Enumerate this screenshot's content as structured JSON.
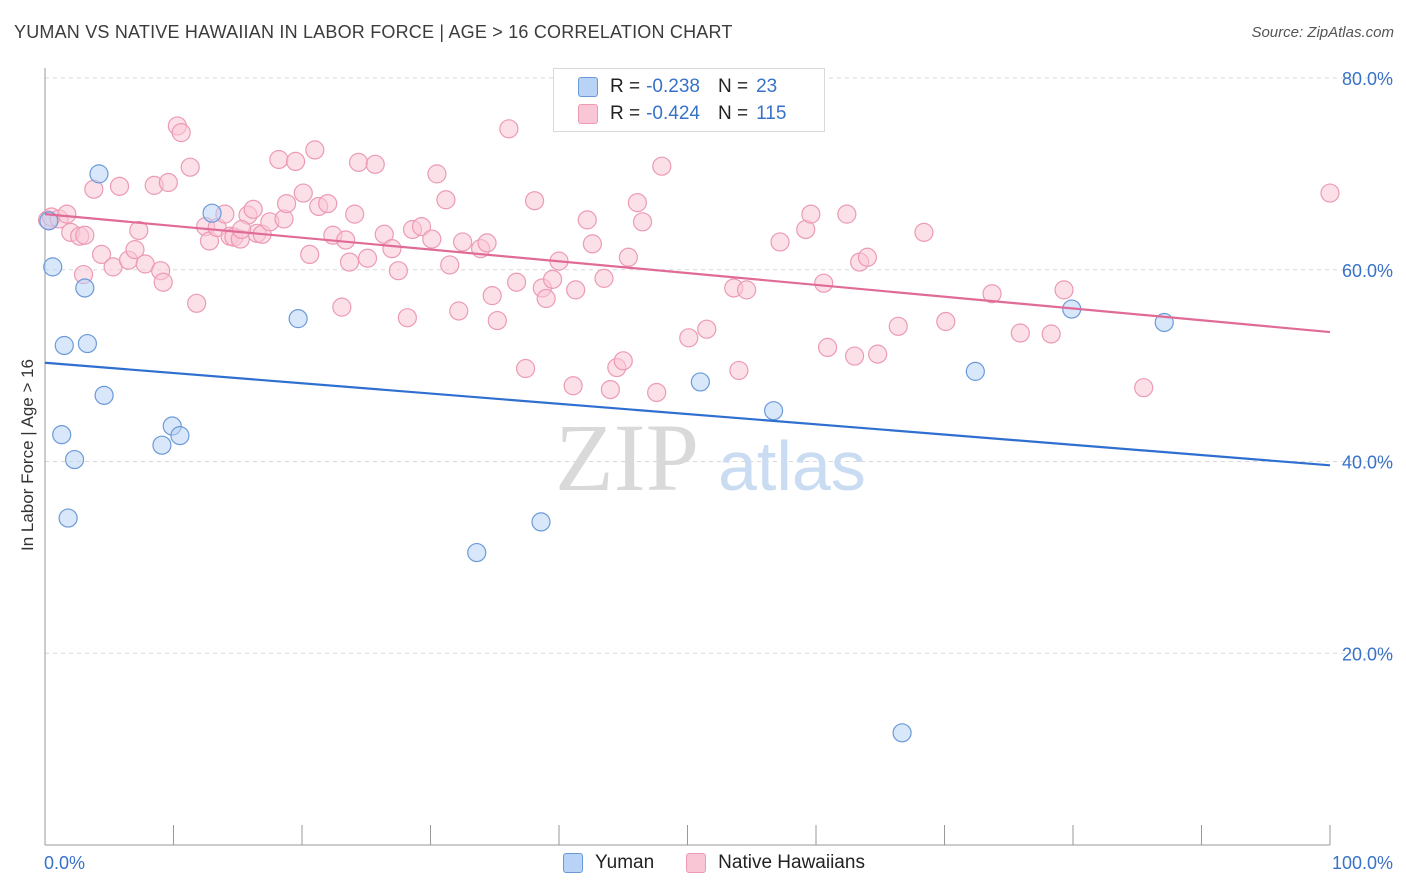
{
  "header": {
    "title": "YUMAN VS NATIVE HAWAIIAN IN LABOR FORCE | AGE > 16 CORRELATION CHART",
    "source": "Source: ZipAtlas.com"
  },
  "legend": {
    "yuman": {
      "r_label": "R =",
      "r_value": "-0.238",
      "n_label": "N =",
      "n_value": "23"
    },
    "hawaiian": {
      "r_label": "R =",
      "r_value": "-0.424",
      "n_label": "N =",
      "n_value": "115"
    }
  },
  "bottom_legend": {
    "yuman": "Yuman",
    "hawaiian": "Native Hawaiians"
  },
  "watermark": {
    "zip": "ZIP",
    "atlas": "atlas"
  },
  "colors": {
    "yuman_fill": "#b8d3f5",
    "yuman_stroke": "#6b9ad8",
    "yuman_line": "#2f6fd0",
    "hawaiian_fill": "#f9c6d6",
    "hawaiian_stroke": "#ec9ab5",
    "hawaiian_line": "#e06b96",
    "axis_text": "#3872c8",
    "grid": "#d8d8d8"
  },
  "chart_data": {
    "type": "scatter",
    "title": "YUMAN VS NATIVE HAWAIIAN IN LABOR FORCE | AGE > 16 CORRELATION CHART",
    "xlabel": "",
    "ylabel": "In Labor Force | Age > 16",
    "xlim": [
      0,
      100
    ],
    "ylim": [
      0,
      80
    ],
    "x_tick_labels": [
      "0.0%",
      "100.0%"
    ],
    "y_ticks": [
      20,
      40,
      60,
      80
    ],
    "y_tick_labels": [
      "20.0%",
      "40.0%",
      "60.0%",
      "80.0%"
    ],
    "grid": true,
    "legend_position": "top-center",
    "series": [
      {
        "name": "Yuman",
        "r": -0.238,
        "n": 23,
        "trend": {
          "x": [
            0,
            100
          ],
          "y": [
            50.3,
            39.6
          ]
        },
        "points": [
          [
            0.3,
            65.1
          ],
          [
            0.6,
            60.3
          ],
          [
            1.5,
            52.1
          ],
          [
            1.3,
            42.8
          ],
          [
            1.8,
            34.1
          ],
          [
            2.3,
            40.2
          ],
          [
            3.1,
            58.1
          ],
          [
            3.3,
            52.3
          ],
          [
            4.2,
            70.0
          ],
          [
            4.6,
            46.9
          ],
          [
            9.1,
            41.7
          ],
          [
            9.9,
            43.7
          ],
          [
            10.5,
            42.7
          ],
          [
            13.0,
            65.9
          ],
          [
            19.7,
            54.9
          ],
          [
            33.6,
            30.5
          ],
          [
            38.6,
            33.7
          ],
          [
            51.0,
            48.3
          ],
          [
            56.7,
            45.3
          ],
          [
            66.7,
            11.7
          ],
          [
            72.4,
            49.4
          ],
          [
            79.9,
            55.9
          ],
          [
            87.1,
            54.5
          ]
        ]
      },
      {
        "name": "Native Hawaiians",
        "r": -0.424,
        "n": 115,
        "trend": {
          "x": [
            0,
            100
          ],
          "y": [
            65.8,
            53.5
          ]
        },
        "points": [
          [
            0.2,
            65.2
          ],
          [
            0.5,
            65.5
          ],
          [
            1.1,
            65.3
          ],
          [
            1.7,
            65.8
          ],
          [
            2.0,
            63.9
          ],
          [
            2.7,
            63.5
          ],
          [
            3.0,
            59.5
          ],
          [
            3.8,
            68.4
          ],
          [
            4.4,
            61.6
          ],
          [
            5.3,
            60.3
          ],
          [
            5.8,
            68.7
          ],
          [
            6.5,
            61.0
          ],
          [
            7.0,
            62.1
          ],
          [
            7.3,
            64.1
          ],
          [
            7.8,
            60.6
          ],
          [
            8.5,
            68.8
          ],
          [
            9.0,
            59.9
          ],
          [
            9.2,
            58.7
          ],
          [
            9.6,
            69.1
          ],
          [
            10.3,
            75.0
          ],
          [
            10.6,
            74.3
          ],
          [
            11.3,
            70.7
          ],
          [
            11.8,
            56.5
          ],
          [
            12.5,
            64.5
          ],
          [
            12.8,
            63.0
          ],
          [
            13.4,
            64.4
          ],
          [
            14.0,
            65.8
          ],
          [
            14.4,
            63.5
          ],
          [
            14.7,
            63.4
          ],
          [
            15.2,
            63.2
          ],
          [
            15.8,
            65.7
          ],
          [
            16.2,
            66.3
          ],
          [
            16.5,
            63.8
          ],
          [
            16.9,
            63.7
          ],
          [
            17.5,
            65.0
          ],
          [
            18.2,
            71.5
          ],
          [
            18.6,
            65.3
          ],
          [
            18.8,
            66.9
          ],
          [
            19.5,
            71.3
          ],
          [
            20.1,
            68.0
          ],
          [
            20.6,
            61.6
          ],
          [
            21.0,
            72.5
          ],
          [
            21.3,
            66.6
          ],
          [
            22.0,
            66.9
          ],
          [
            22.4,
            63.6
          ],
          [
            23.1,
            56.1
          ],
          [
            23.4,
            63.1
          ],
          [
            23.7,
            60.8
          ],
          [
            24.4,
            71.2
          ],
          [
            25.1,
            61.2
          ],
          [
            25.7,
            71.0
          ],
          [
            26.4,
            63.7
          ],
          [
            27.0,
            62.2
          ],
          [
            27.5,
            59.9
          ],
          [
            28.2,
            55.0
          ],
          [
            28.6,
            64.2
          ],
          [
            29.3,
            64.5
          ],
          [
            30.1,
            63.2
          ],
          [
            31.2,
            67.3
          ],
          [
            31.5,
            60.5
          ],
          [
            32.2,
            55.7
          ],
          [
            32.5,
            62.9
          ],
          [
            33.9,
            62.2
          ],
          [
            34.4,
            62.8
          ],
          [
            34.8,
            57.3
          ],
          [
            35.2,
            54.7
          ],
          [
            36.1,
            74.7
          ],
          [
            36.7,
            58.7
          ],
          [
            37.4,
            49.7
          ],
          [
            38.1,
            67.2
          ],
          [
            38.7,
            58.1
          ],
          [
            39.5,
            59.0
          ],
          [
            40.0,
            60.9
          ],
          [
            41.1,
            47.9
          ],
          [
            41.3,
            57.9
          ],
          [
            42.2,
            65.2
          ],
          [
            42.6,
            62.7
          ],
          [
            43.5,
            59.1
          ],
          [
            44.0,
            47.5
          ],
          [
            44.5,
            49.8
          ],
          [
            45.0,
            50.5
          ],
          [
            45.4,
            61.3
          ],
          [
            46.1,
            67.0
          ],
          [
            46.5,
            65.0
          ],
          [
            47.6,
            47.2
          ],
          [
            48.0,
            70.8
          ],
          [
            50.1,
            52.9
          ],
          [
            51.5,
            53.8
          ],
          [
            53.6,
            58.1
          ],
          [
            54.6,
            57.9
          ],
          [
            57.2,
            62.9
          ],
          [
            59.2,
            64.2
          ],
          [
            59.6,
            65.8
          ],
          [
            60.6,
            58.6
          ],
          [
            60.9,
            51.9
          ],
          [
            62.4,
            65.8
          ],
          [
            63.0,
            51.0
          ],
          [
            63.4,
            60.8
          ],
          [
            64.0,
            61.3
          ],
          [
            64.8,
            51.2
          ],
          [
            66.4,
            54.1
          ],
          [
            68.4,
            63.9
          ],
          [
            70.1,
            54.6
          ],
          [
            73.7,
            57.5
          ],
          [
            75.9,
            53.4
          ],
          [
            78.3,
            53.3
          ],
          [
            79.3,
            57.9
          ],
          [
            85.5,
            47.7
          ],
          [
            100.0,
            68.0
          ],
          [
            3.1,
            63.6
          ],
          [
            15.3,
            64.2
          ],
          [
            24.1,
            65.8
          ],
          [
            30.5,
            70.0
          ],
          [
            39.0,
            57.0
          ],
          [
            54.0,
            49.5
          ]
        ]
      }
    ]
  }
}
